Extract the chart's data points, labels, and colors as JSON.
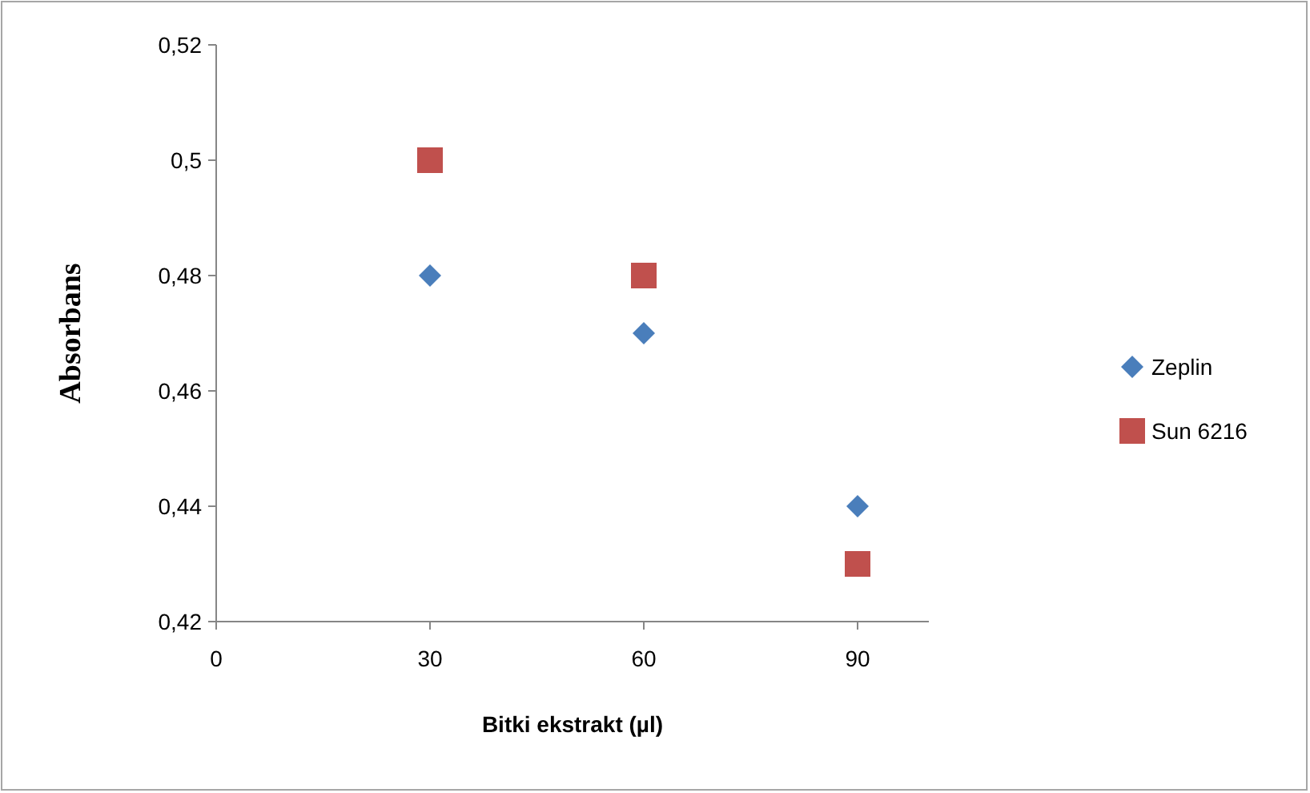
{
  "chart_data": {
    "type": "scatter",
    "xlabel": "Bitki ekstrakt (µl)",
    "ylabel": "Absorbans",
    "x": [
      30,
      60,
      90
    ],
    "series": [
      {
        "name": "Zeplin",
        "color": "#4a7ebb",
        "marker": "diamond",
        "values": [
          0.48,
          0.47,
          0.44
        ]
      },
      {
        "name": "Sun 6216",
        "color": "#c0504d",
        "marker": "square",
        "values": [
          0.5,
          0.48,
          0.43
        ]
      }
    ],
    "xlim": [
      0,
      100
    ],
    "xticks": [
      0,
      30,
      60,
      90
    ],
    "ylim": [
      0.42,
      0.52
    ],
    "yticks": [
      {
        "value": 0.42,
        "label": "0,42"
      },
      {
        "value": 0.44,
        "label": "0,44"
      },
      {
        "value": 0.46,
        "label": "0,46"
      },
      {
        "value": 0.48,
        "label": "0,48"
      },
      {
        "value": 0.5,
        "label": "0,5"
      },
      {
        "value": 0.52,
        "label": "0,52"
      }
    ],
    "grid": false,
    "legend": "right"
  }
}
